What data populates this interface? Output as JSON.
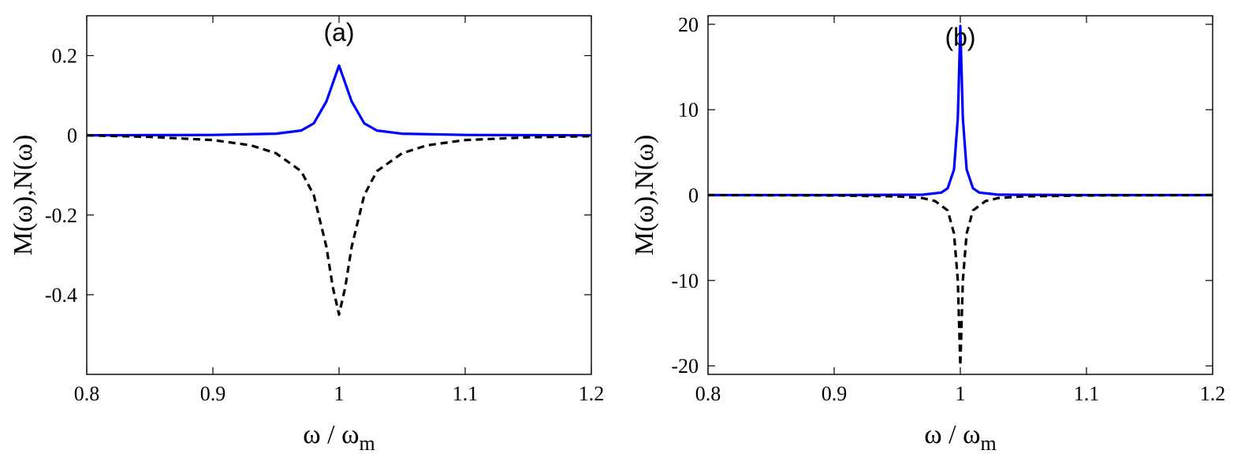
{
  "chart_data": [
    {
      "type": "line",
      "panel_label": "(a)",
      "xlabel": "ω / ω",
      "xlabel_sub": "m",
      "ylabel": "M(ω),N(ω)",
      "xlim": [
        0.8,
        1.2
      ],
      "ylim": [
        -0.6,
        0.3
      ],
      "xticks": [
        0.8,
        0.9,
        1.0,
        1.1,
        1.2
      ],
      "xtick_labels": [
        "0.8",
        "0.9",
        "1",
        "1.1",
        "1.2"
      ],
      "yticks": [
        -0.4,
        -0.2,
        0,
        0.2
      ],
      "ytick_labels": [
        "-0.4",
        "-0.2",
        "0",
        "0.2"
      ],
      "grid": false,
      "series": [
        {
          "color": "#0000ff",
          "style": "solid",
          "x": [
            0.8,
            0.9,
            0.95,
            0.97,
            0.98,
            0.99,
            0.995,
            1.0,
            1.005,
            1.01,
            1.02,
            1.03,
            1.05,
            1.1,
            1.2
          ],
          "y": [
            0.0,
            0.001,
            0.004,
            0.012,
            0.03,
            0.085,
            0.13,
            0.175,
            0.13,
            0.085,
            0.03,
            0.012,
            0.004,
            0.001,
            0.0
          ]
        },
        {
          "color": "#000000",
          "style": "dashed",
          "x": [
            0.8,
            0.85,
            0.9,
            0.93,
            0.95,
            0.97,
            0.98,
            0.99,
            0.995,
            1.0,
            1.005,
            1.01,
            1.02,
            1.03,
            1.05,
            1.07,
            1.1,
            1.15,
            1.2
          ],
          "y": [
            0.0,
            -0.004,
            -0.012,
            -0.025,
            -0.045,
            -0.09,
            -0.15,
            -0.28,
            -0.38,
            -0.45,
            -0.38,
            -0.28,
            -0.15,
            -0.09,
            -0.045,
            -0.025,
            -0.012,
            -0.005,
            -0.002
          ]
        }
      ]
    },
    {
      "type": "line",
      "panel_label": "(b)",
      "xlabel": "ω / ω",
      "xlabel_sub": "m",
      "ylabel": "M(ω),N(ω)",
      "xlim": [
        0.8,
        1.2
      ],
      "ylim": [
        -21,
        21
      ],
      "xticks": [
        0.8,
        0.9,
        1.0,
        1.1,
        1.2
      ],
      "xtick_labels": [
        "0.8",
        "0.9",
        "1",
        "1.1",
        "1.2"
      ],
      "yticks": [
        -20,
        -10,
        0,
        10,
        20
      ],
      "ytick_labels": [
        "-20",
        "-10",
        "0",
        "10",
        "20"
      ],
      "grid": false,
      "series": [
        {
          "color": "#0000ff",
          "style": "solid",
          "x": [
            0.8,
            0.9,
            0.97,
            0.985,
            0.99,
            0.995,
            0.998,
            1.0,
            1.002,
            1.005,
            1.01,
            1.015,
            1.03,
            1.1,
            1.2
          ],
          "y": [
            0.0,
            0.0,
            0.05,
            0.3,
            0.8,
            3.0,
            9.0,
            19.8,
            9.0,
            3.0,
            0.8,
            0.3,
            0.05,
            0.0,
            0.0
          ]
        },
        {
          "color": "#000000",
          "style": "dashed",
          "x": [
            0.8,
            0.9,
            0.95,
            0.97,
            0.98,
            0.99,
            0.995,
            0.998,
            1.0,
            1.002,
            1.005,
            1.01,
            1.02,
            1.03,
            1.05,
            1.1,
            1.2
          ],
          "y": [
            0.0,
            -0.05,
            -0.15,
            -0.35,
            -0.7,
            -1.8,
            -4.5,
            -10.0,
            -20.0,
            -10.0,
            -4.5,
            -1.8,
            -0.7,
            -0.35,
            -0.15,
            -0.05,
            0.0
          ]
        }
      ]
    }
  ]
}
